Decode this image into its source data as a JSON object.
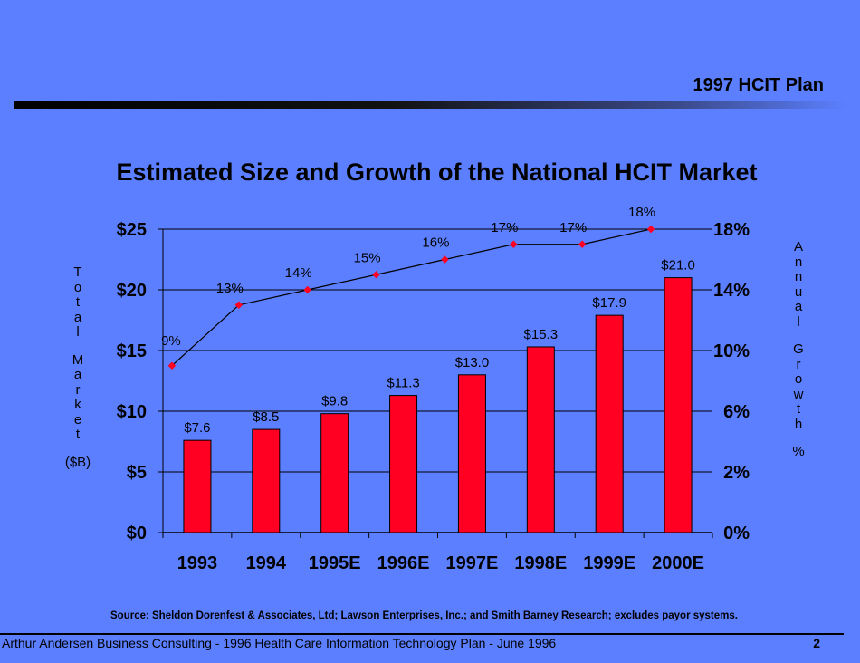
{
  "header": {
    "title": "1997 HCIT Plan"
  },
  "chart_data": {
    "type": "bar",
    "title": "Estimated Size and Growth of the National HCIT Market",
    "categories": [
      "1993",
      "1994",
      "1995E",
      "1996E",
      "1997E",
      "1998E",
      "1999E",
      "2000E"
    ],
    "series": [
      {
        "name": "Total Market ($B)",
        "type": "bar",
        "axis": "left",
        "color": "#ff0022",
        "values": [
          7.6,
          8.5,
          9.8,
          11.3,
          13.0,
          15.3,
          17.9,
          21.0
        ],
        "labels": [
          "$7.6",
          "$8.5",
          "$9.8",
          "$11.3",
          "$13.0",
          "$15.3",
          "$17.9",
          "$21.0"
        ]
      },
      {
        "name": "Annual Growth %",
        "type": "line",
        "axis": "right",
        "color": "#ff0022",
        "values": [
          9,
          13,
          14,
          15,
          16,
          17,
          17,
          18
        ],
        "labels": [
          "9%",
          "13%",
          "14%",
          "15%",
          "16%",
          "17%",
          "17%",
          "18%"
        ]
      }
    ],
    "left_axis": {
      "label_lines": [
        "T",
        "o",
        "t",
        "a",
        "l",
        "",
        "M",
        "a",
        "r",
        "k",
        "e",
        "t",
        "",
        "($B)"
      ],
      "ylim": [
        0,
        25
      ],
      "ticks": [
        0,
        5,
        10,
        15,
        20,
        25
      ],
      "tick_labels": [
        "$0",
        "$5",
        "$10",
        "$15",
        "$20",
        "$25"
      ]
    },
    "right_axis": {
      "label_lines": [
        "A",
        "n",
        "n",
        "u",
        "a",
        "l",
        "",
        "G",
        "r",
        "o",
        "w",
        "t",
        "h",
        "",
        "%"
      ],
      "tick_labels": [
        "0%",
        "2%",
        "6%",
        "10%",
        "14%",
        "18%"
      ],
      "tick_values": [
        0,
        2,
        6,
        10,
        14,
        18
      ]
    },
    "grid": true
  },
  "source": "Source: Sheldon Dorenfest & Associates, Ltd; Lawson Enterprises, Inc.; and Smith Barney Research; excludes payor systems.",
  "footer": {
    "text": "Arthur Andersen Business Consulting  - 1996 Health Care Information Technology Plan - June 1996",
    "page_number": "2"
  }
}
